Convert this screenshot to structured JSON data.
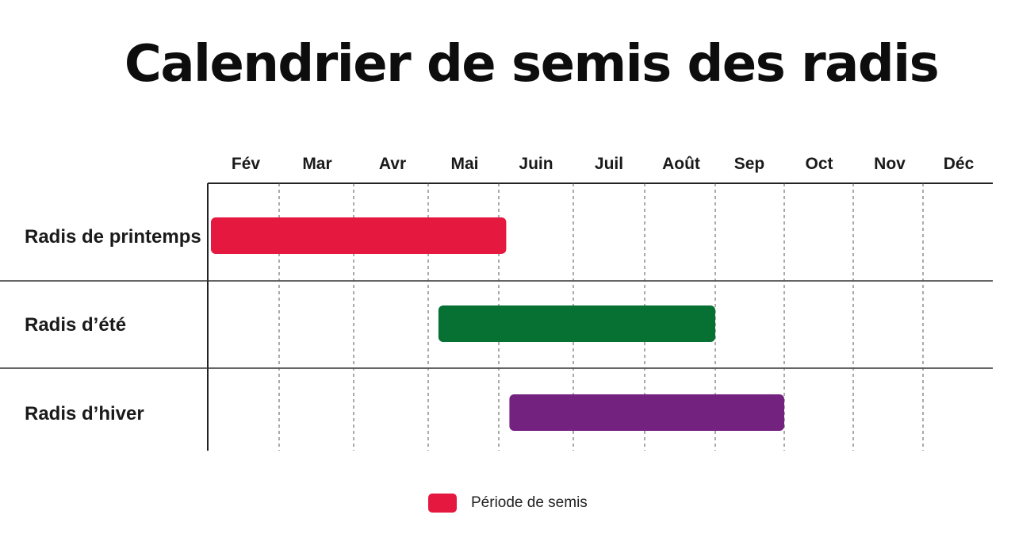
{
  "chart_data": {
    "type": "gantt",
    "title": "Calendrier de semis des radis",
    "months": [
      "Fév",
      "Mar",
      "Avr",
      "Mai",
      "Juin",
      "Juil",
      "Août",
      "Sep",
      "Oct",
      "Nov",
      "Déc"
    ],
    "rows": [
      {
        "label": "Radis de printemps",
        "start": 0.0,
        "end": 4.1,
        "color": "#e5183f"
      },
      {
        "label": "Radis d’été",
        "start": 3.1,
        "end": 7.0,
        "color": "#077033"
      },
      {
        "label": "Radis d’hiver",
        "start": 4.1,
        "end": 8.0,
        "color": "#74227f"
      }
    ],
    "legend": [
      {
        "label": "Période de semis",
        "color": "#e5183f"
      }
    ],
    "legend_placement": "bottom-center",
    "grid": "dashed vertical month separators"
  }
}
